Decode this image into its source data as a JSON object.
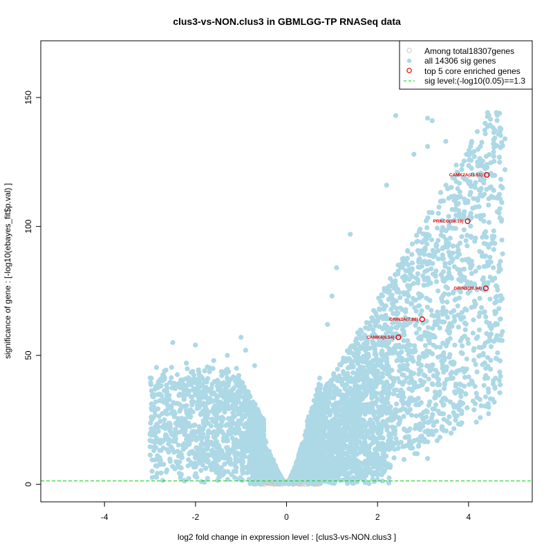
{
  "chart_data": {
    "type": "scatter",
    "title": "clus3-vs-NON.clus3 in GBMLGG-TP RNASeq data",
    "xlabel": "log2 fold change in expression level : [clus3-vs-NON.clus3 ]",
    "ylabel": "significance of gene : [-log10(ebayes_fit$p.val) ]",
    "xlim": [
      -5.4,
      5.4
    ],
    "ylim": [
      -6.8,
      172
    ],
    "xticks": [
      -4,
      -2,
      0,
      2,
      4
    ],
    "yticks": [
      0,
      50,
      100,
      150
    ],
    "legend_position": "top-right",
    "legend": [
      {
        "label": "Among total18307genes",
        "marker": "open-circle",
        "color": "#c8c8c8"
      },
      {
        "label": "all 14306 sig genes",
        "marker": "filled-circle",
        "color": "#add8e6"
      },
      {
        "label": "top 5 core enriched genes",
        "marker": "open-circle",
        "color": "#e00000"
      },
      {
        "label": "sig level:(-log10(0.05)==1.3",
        "marker": "dashed-line",
        "color": "#00cc00"
      }
    ],
    "sig_level": 1.3,
    "series": [
      {
        "name": "all 14306 sig genes",
        "color": "#add8e6",
        "description": "volcano shape: left arm from about x=-3 to -0.5 reaching y~55, right arm from about x=0.5 to 4.8 reaching y~145"
      },
      {
        "name": "top 5 core enriched genes",
        "color": "#e00000",
        "points": [
          {
            "label": "CAMK2A(21.51)",
            "x": 4.4,
            "y": 120
          },
          {
            "label": "PRKCG(16.19)",
            "x": 3.98,
            "y": 102
          },
          {
            "label": "GRIN1(20.94)",
            "x": 4.38,
            "y": 76
          },
          {
            "label": "GRIN2A(7.88)",
            "x": 2.98,
            "y": 64
          },
          {
            "label": "CAMK4(6.54)",
            "x": 2.46,
            "y": 57
          }
        ]
      }
    ],
    "colors": {
      "sig": "#add8e6",
      "nonsig": "#c8c8c8",
      "top": "#e00000",
      "siglevel": "#00cc00"
    }
  }
}
